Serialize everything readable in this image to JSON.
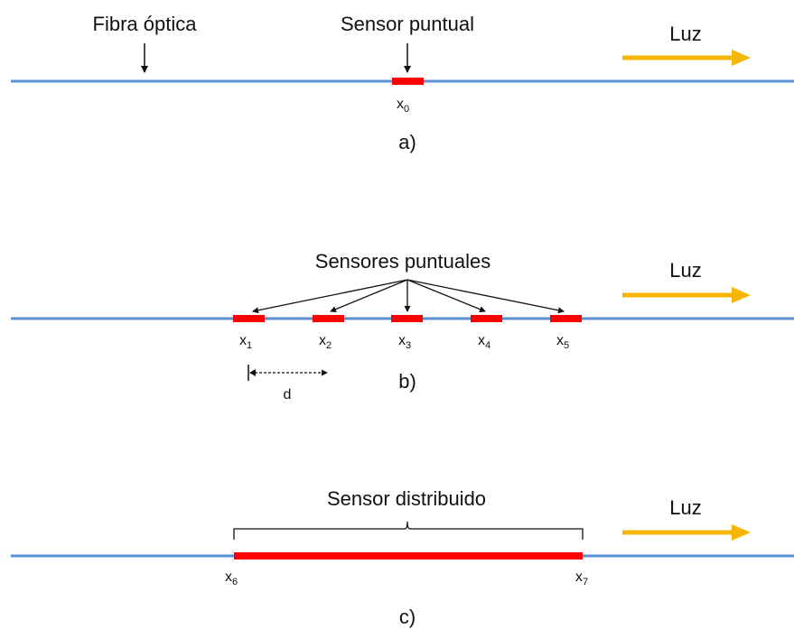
{
  "colors": {
    "fiber": "#5b8fd6",
    "sensor": "#ff0000",
    "light_arrow": "#f7b500",
    "pointer": "#111111"
  },
  "panel_a": {
    "fiber_label": "Fibra óptica",
    "sensor_label": "Sensor puntual",
    "light_label": "Luz",
    "position": {
      "base": "x",
      "sub": "0"
    },
    "caption": "a)"
  },
  "panel_b": {
    "sensors_label": "Sensores puntuales",
    "light_label": "Luz",
    "positions": [
      {
        "base": "x",
        "sub": "1"
      },
      {
        "base": "x",
        "sub": "2"
      },
      {
        "base": "x",
        "sub": "3"
      },
      {
        "base": "x",
        "sub": "4"
      },
      {
        "base": "x",
        "sub": "5"
      }
    ],
    "spacing_label": "d",
    "caption": "b)"
  },
  "panel_c": {
    "sensor_label": "Sensor distribuido",
    "light_label": "Luz",
    "start": {
      "base": "x",
      "sub": "6"
    },
    "end": {
      "base": "x",
      "sub": "7"
    },
    "caption": "c)"
  }
}
